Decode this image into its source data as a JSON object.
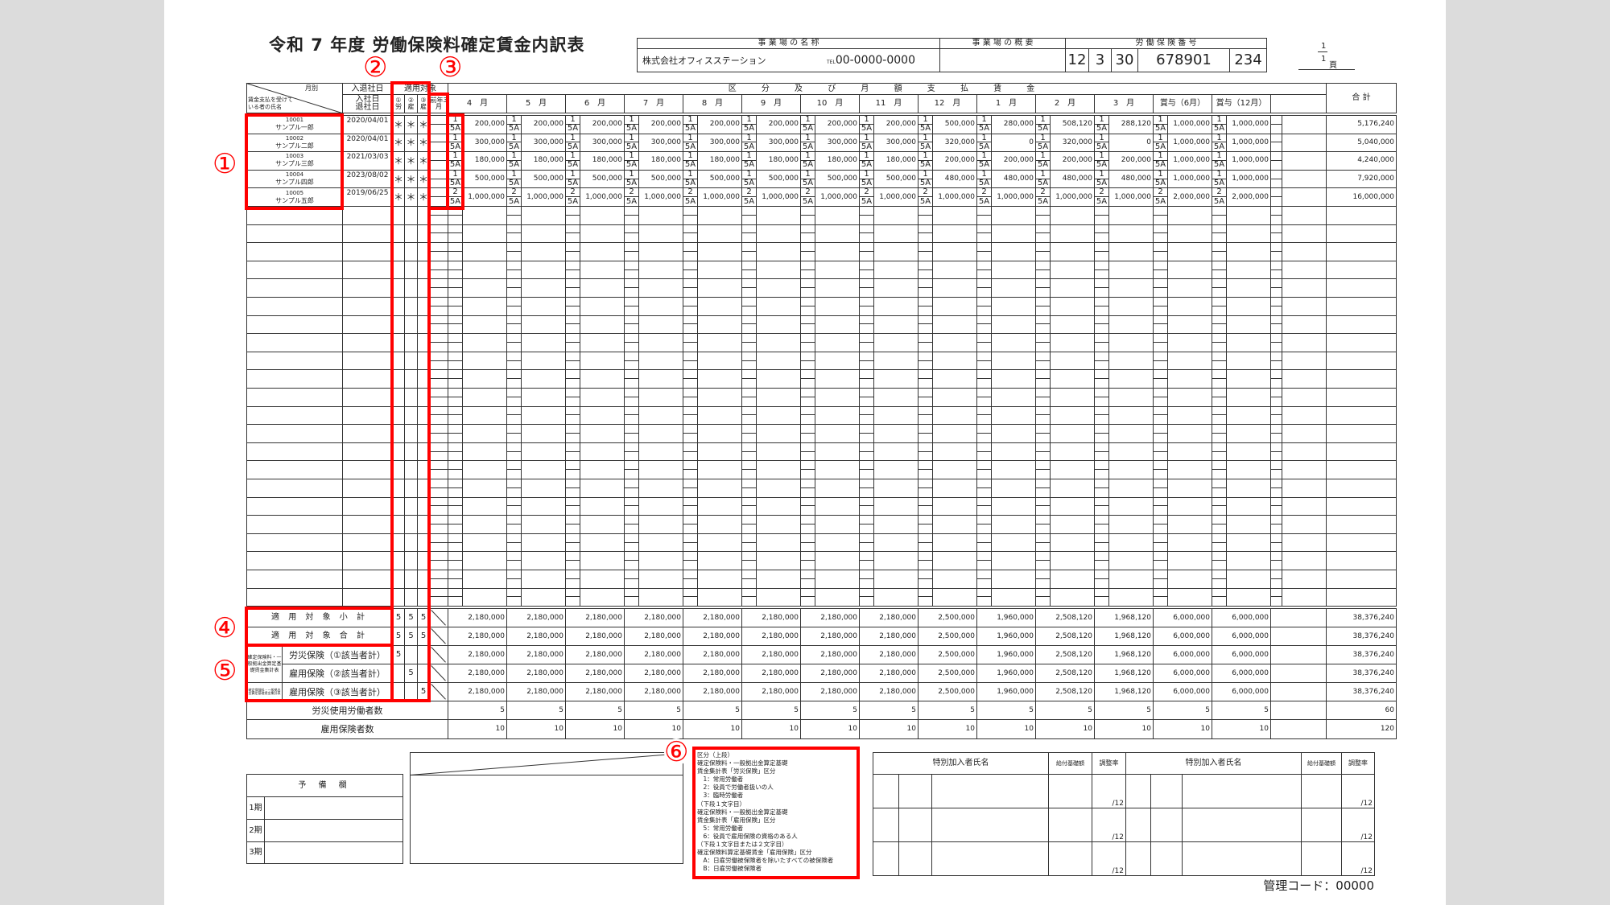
{
  "header": {
    "title": "令和 7 年度 労働保険料確定賃金内訳表",
    "office_name_label": "事 業 場 の 名 称",
    "office_summary_label": "事 業 場 の 概 要",
    "insurance_no_label": "労 働 保 険 番 号",
    "company": "株式会社オフィスステーション",
    "tel_label": "TEL",
    "tel": "00-0000-0000",
    "insurance_no": [
      "12",
      "3",
      "30",
      "678901",
      "234"
    ],
    "page_current": "1",
    "page_total": "1",
    "page_unit": "頁"
  },
  "table": {
    "month_label": "月別",
    "name_label": "賃金支払を受けている者の氏名",
    "join_leave_label": "入退社日",
    "join_label": "入社日",
    "leave_label": "退社日",
    "applicable_label": "適用対象",
    "flag_labels": [
      "①労",
      "②雇",
      "③雇"
    ],
    "prev_march_label": "前年3月",
    "wages_label": "区 分 及 び 月 額 支 払 賃 金",
    "total_label": "合 計",
    "month_headers": [
      "4　月",
      "5　月",
      "6　月",
      "7　月",
      "8　月",
      "9　月",
      "10　月",
      "11　月",
      "12　月",
      "1　月",
      "2　月",
      "3　月",
      "賞与（6月）",
      "賞与（12月）"
    ],
    "code_bottom": "5A",
    "employees": [
      {
        "id": "10001",
        "name": "サンプル一郎",
        "date": "2020/04/01",
        "flags": [
          "＊",
          "＊",
          "＊"
        ],
        "code": "1",
        "amounts": [
          "200,000",
          "200,000",
          "200,000",
          "200,000",
          "200,000",
          "200,000",
          "200,000",
          "200,000",
          "500,000",
          "280,000",
          "508,120",
          "288,120",
          "1,000,000",
          "1,000,000"
        ],
        "total": "5,176,240"
      },
      {
        "id": "10002",
        "name": "サンプル二郎",
        "date": "2020/04/01",
        "flags": [
          "＊",
          "＊",
          "＊"
        ],
        "code": "1",
        "amounts": [
          "300,000",
          "300,000",
          "300,000",
          "300,000",
          "300,000",
          "300,000",
          "300,000",
          "300,000",
          "320,000",
          "0",
          "320,000",
          "0",
          "1,000,000",
          "1,000,000"
        ],
        "total": "5,040,000"
      },
      {
        "id": "10003",
        "name": "サンプル三郎",
        "date": "2021/03/03",
        "flags": [
          "＊",
          "＊",
          "＊"
        ],
        "code": "1",
        "amounts": [
          "180,000",
          "180,000",
          "180,000",
          "180,000",
          "180,000",
          "180,000",
          "180,000",
          "180,000",
          "200,000",
          "200,000",
          "200,000",
          "200,000",
          "1,000,000",
          "1,000,000"
        ],
        "total": "4,240,000"
      },
      {
        "id": "10004",
        "name": "サンプル四郎",
        "date": "2023/08/02",
        "flags": [
          "＊",
          "＊",
          "＊"
        ],
        "code": "1",
        "amounts": [
          "500,000",
          "500,000",
          "500,000",
          "500,000",
          "500,000",
          "500,000",
          "500,000",
          "500,000",
          "480,000",
          "480,000",
          "480,000",
          "480,000",
          "1,000,000",
          "1,000,000"
        ],
        "total": "7,920,000"
      },
      {
        "id": "10005",
        "name": "サンプル五郎",
        "date": "2019/06/25",
        "flags": [
          "＊",
          "＊",
          "＊"
        ],
        "code": "2",
        "amounts": [
          "1,000,000",
          "1,000,000",
          "1,000,000",
          "1,000,000",
          "1,000,000",
          "1,000,000",
          "1,000,000",
          "1,000,000",
          "1,000,000",
          "1,000,000",
          "1,000,000",
          "1,000,000",
          "2,000,000",
          "2,000,000"
        ],
        "total": "16,000,000"
      }
    ],
    "summary_side_label": "確定保険料・一般拠出金算定基礎賃金集計表",
    "summary_rows": [
      {
        "label": "適 用 対 象 小 計",
        "flags": [
          "5",
          "5",
          "5"
        ],
        "amounts": [
          "2,180,000",
          "2,180,000",
          "2,180,000",
          "2,180,000",
          "2,180,000",
          "2,180,000",
          "2,180,000",
          "2,180,000",
          "2,500,000",
          "1,960,000",
          "2,508,120",
          "1,968,120",
          "6,000,000",
          "6,000,000"
        ],
        "total": "38,376,240"
      },
      {
        "label": "適 用 対 象 合 計",
        "flags": [
          "5",
          "5",
          "5"
        ],
        "amounts": [
          "2,180,000",
          "2,180,000",
          "2,180,000",
          "2,180,000",
          "2,180,000",
          "2,180,000",
          "2,180,000",
          "2,180,000",
          "2,500,000",
          "1,960,000",
          "2,508,120",
          "1,968,120",
          "6,000,000",
          "6,000,000"
        ],
        "total": "38,376,240"
      },
      {
        "label": "労災保険（①該当者計）",
        "flags": [
          "5",
          "",
          ""
        ],
        "amounts": [
          "2,180,000",
          "2,180,000",
          "2,180,000",
          "2,180,000",
          "2,180,000",
          "2,180,000",
          "2,180,000",
          "2,180,000",
          "2,500,000",
          "1,960,000",
          "2,508,120",
          "1,968,120",
          "6,000,000",
          "6,000,000"
        ],
        "total": "38,376,240"
      },
      {
        "label": "雇用保険（②該当者計）",
        "flags": [
          "",
          "5",
          ""
        ],
        "amounts": [
          "2,180,000",
          "2,180,000",
          "2,180,000",
          "2,180,000",
          "2,180,000",
          "2,180,000",
          "2,180,000",
          "2,180,000",
          "2,500,000",
          "1,960,000",
          "2,508,120",
          "1,968,120",
          "6,000,000",
          "6,000,000"
        ],
        "total": "38,376,240"
      },
      {
        "label": "雇用保険（③該当者計）",
        "flags": [
          "",
          "",
          "5"
        ],
        "amounts": [
          "2,180,000",
          "2,180,000",
          "2,180,000",
          "2,180,000",
          "2,180,000",
          "2,180,000",
          "2,180,000",
          "2,180,000",
          "2,500,000",
          "1,960,000",
          "2,508,120",
          "1,968,120",
          "6,000,000",
          "6,000,000"
        ],
        "total": "38,376,240"
      }
    ],
    "count_rows": [
      {
        "label": "労災使用労働者数",
        "values": [
          "5",
          "5",
          "5",
          "5",
          "5",
          "5",
          "5",
          "5",
          "5",
          "5",
          "5",
          "5",
          "5",
          "5"
        ],
        "total": "60"
      },
      {
        "label": "雇用保険者数",
        "values": [
          "10",
          "10",
          "10",
          "10",
          "10",
          "10",
          "10",
          "10",
          "10",
          "10",
          "10",
          "10",
          "10",
          "10"
        ],
        "total": "120"
      }
    ]
  },
  "reserve": {
    "title": "予 備 欄",
    "periods": [
      "1期",
      "2期",
      "3期"
    ]
  },
  "notes": [
    "区分（上段）",
    "確定保険料・一般拠出金算定基礎",
    "賃金集計表「労災保険」区分",
    "　1：常用労働者",
    "　2：役員で労働者扱いの人",
    "　3：臨時労働者",
    "（下段１文字目）",
    "確定保険料・一般拠出金算定基礎",
    "賃金集計表「雇用保険」区分",
    "　5：常用労働者",
    "　6：役員で雇用保険の資格のある人",
    "（下段１文字目または２文字目）",
    "確定保険料算定基礎賃金「雇用保険」区分",
    "　A：日雇労働被保険者を除いたすべての被保険者",
    "　B：日雇労働被保険者"
  ],
  "special": {
    "name_label": "特別加入者氏名",
    "base_label": "給付基礎額",
    "rate_label": "調整率",
    "rate_suffix": "/12"
  },
  "management_code": "管理コード：00000",
  "annotations": {
    "markers": [
      "①",
      "②",
      "③",
      "④",
      "⑤",
      "⑥"
    ],
    "color": "#ff0000"
  }
}
